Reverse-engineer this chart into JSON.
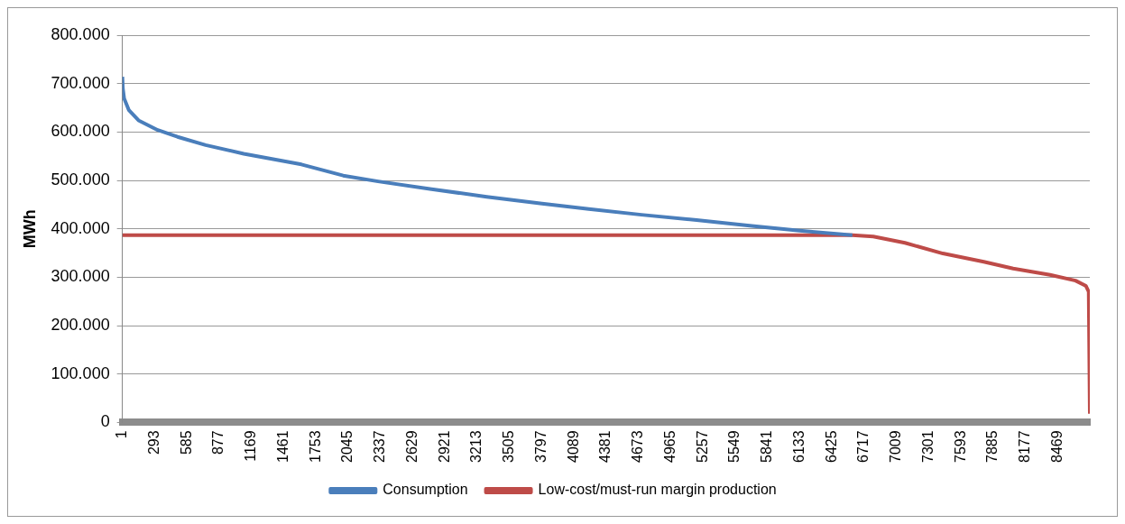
{
  "chart_data": {
    "type": "line",
    "ylabel": "MWh",
    "xlim": [
      1,
      8760
    ],
    "xticks": [
      1,
      293,
      585,
      877,
      1169,
      1461,
      1753,
      2045,
      2337,
      2629,
      2921,
      3213,
      3505,
      3797,
      4089,
      4381,
      4673,
      4965,
      5257,
      5549,
      5841,
      6133,
      6425,
      6717,
      7009,
      7301,
      7593,
      7885,
      8177,
      8469
    ],
    "ylim": [
      0,
      800000
    ],
    "yticks": [
      {
        "value": 0,
        "label": "0"
      },
      {
        "value": 100000,
        "label": "100.000"
      },
      {
        "value": 200000,
        "label": "200.000"
      },
      {
        "value": 300000,
        "label": "300.000"
      },
      {
        "value": 400000,
        "label": "400.000"
      },
      {
        "value": 500000,
        "label": "500.000"
      },
      {
        "value": 600000,
        "label": "600.000"
      },
      {
        "value": 700000,
        "label": "700.000"
      },
      {
        "value": 800000,
        "label": "800.000"
      }
    ],
    "grid": "y",
    "legend": "bottom",
    "marker": "none",
    "line_style": "solid",
    "series": [
      {
        "name": "Consumption",
        "color": "#4a7ebb",
        "x": [
          1,
          5,
          17,
          60,
          147,
          321,
          500,
          755,
          1100,
          1622,
          2000,
          2316,
          2800,
          3300,
          3800,
          4224,
          4700,
          5200,
          5700,
          6133,
          6610
        ],
        "values": [
          714000,
          690000,
          669000,
          645000,
          624000,
          604000,
          590000,
          573000,
          555000,
          533000,
          510000,
          498000,
          482000,
          466000,
          452000,
          441000,
          429000,
          418000,
          406000,
          396000,
          387000
        ]
      },
      {
        "name": "Low-cost/must-run margin production",
        "color": "#be4b48",
        "x": [
          1,
          6610,
          6800,
          7086,
          7430,
          7800,
          8066,
          8400,
          8630,
          8725,
          8750,
          8760
        ],
        "values": [
          387000,
          387000,
          384000,
          371000,
          349000,
          332000,
          318000,
          305000,
          293000,
          282000,
          270000,
          18000
        ]
      }
    ]
  }
}
